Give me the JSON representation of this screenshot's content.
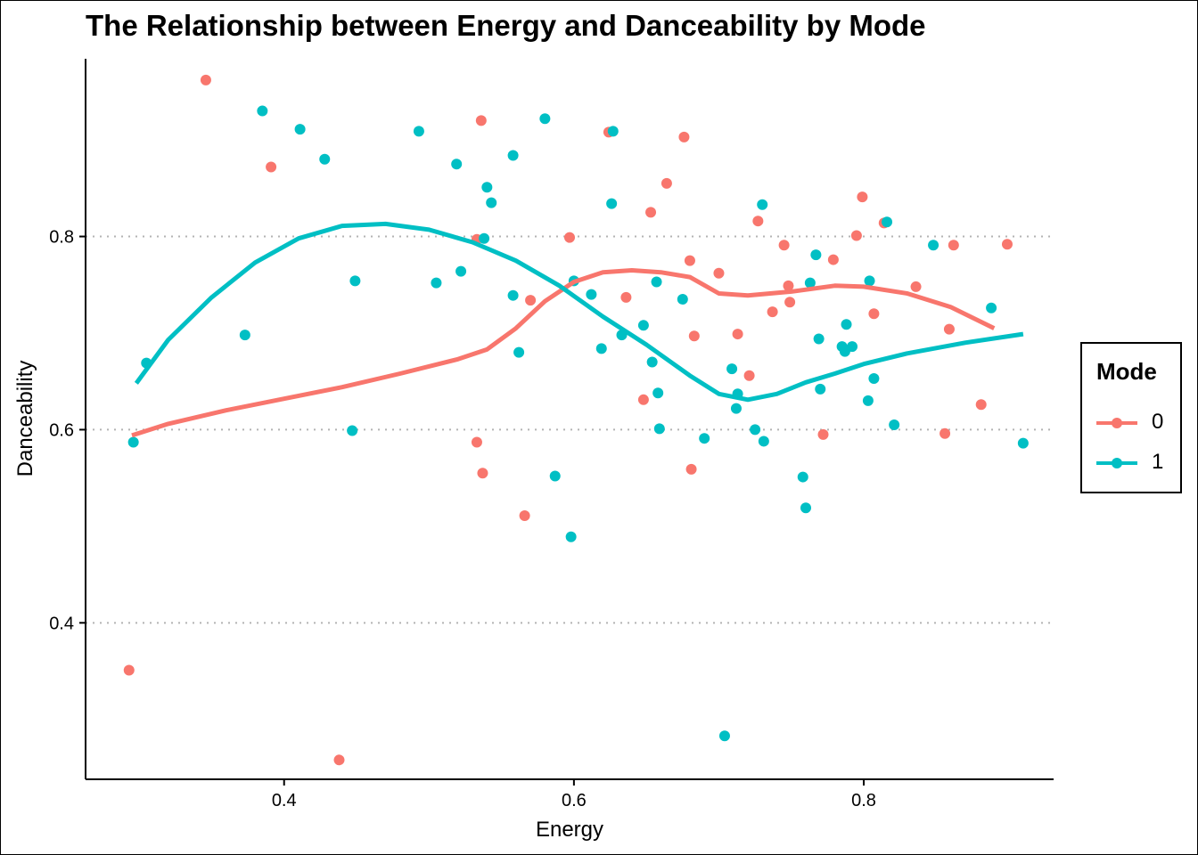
{
  "chart_data": {
    "type": "scatter",
    "title": "The Relationship between Energy and Danceability by Mode",
    "xlabel": "Energy",
    "ylabel": "Danceability",
    "xlim": [
      0.263,
      0.931
    ],
    "ylim": [
      0.238,
      0.984
    ],
    "xticks": [
      0.4,
      0.6,
      0.8
    ],
    "xtick_labels": [
      "0.4",
      "0.6",
      "0.8"
    ],
    "yticks": [
      0.4,
      0.6,
      0.8
    ],
    "ytick_labels": [
      "0.4",
      "0.6",
      "0.8"
    ],
    "grid": "horizontal dotted at major y ticks",
    "legend": {
      "title": "Mode",
      "position": "right"
    },
    "series": [
      {
        "name": "0",
        "color": "#F8766D",
        "points": [
          [
            0.346,
            0.962
          ],
          [
            0.391,
            0.872
          ],
          [
            0.536,
            0.92
          ],
          [
            0.533,
            0.797
          ],
          [
            0.624,
            0.908
          ],
          [
            0.676,
            0.903
          ],
          [
            0.664,
            0.855
          ],
          [
            0.653,
            0.825
          ],
          [
            0.597,
            0.799
          ],
          [
            0.727,
            0.816
          ],
          [
            0.799,
            0.841
          ],
          [
            0.814,
            0.814
          ],
          [
            0.795,
            0.801
          ],
          [
            0.745,
            0.791
          ],
          [
            0.862,
            0.791
          ],
          [
            0.899,
            0.792
          ],
          [
            0.68,
            0.775
          ],
          [
            0.779,
            0.776
          ],
          [
            0.7,
            0.762
          ],
          [
            0.636,
            0.737
          ],
          [
            0.57,
            0.734
          ],
          [
            0.748,
            0.749
          ],
          [
            0.749,
            0.732
          ],
          [
            0.836,
            0.748
          ],
          [
            0.737,
            0.722
          ],
          [
            0.807,
            0.72
          ],
          [
            0.713,
            0.699
          ],
          [
            0.683,
            0.697
          ],
          [
            0.859,
            0.704
          ],
          [
            0.721,
            0.656
          ],
          [
            0.648,
            0.631
          ],
          [
            0.772,
            0.595
          ],
          [
            0.533,
            0.587
          ],
          [
            0.856,
            0.596
          ],
          [
            0.881,
            0.626
          ],
          [
            0.537,
            0.555
          ],
          [
            0.681,
            0.559
          ],
          [
            0.566,
            0.511
          ],
          [
            0.293,
            0.351
          ],
          [
            0.438,
            0.258
          ]
        ],
        "smooth": [
          [
            0.295,
            0.594
          ],
          [
            0.32,
            0.606
          ],
          [
            0.36,
            0.62
          ],
          [
            0.4,
            0.632
          ],
          [
            0.44,
            0.644
          ],
          [
            0.48,
            0.658
          ],
          [
            0.52,
            0.673
          ],
          [
            0.54,
            0.683
          ],
          [
            0.56,
            0.705
          ],
          [
            0.58,
            0.733
          ],
          [
            0.6,
            0.753
          ],
          [
            0.62,
            0.763
          ],
          [
            0.64,
            0.765
          ],
          [
            0.66,
            0.763
          ],
          [
            0.68,
            0.758
          ],
          [
            0.7,
            0.741
          ],
          [
            0.72,
            0.739
          ],
          [
            0.75,
            0.743
          ],
          [
            0.78,
            0.749
          ],
          [
            0.8,
            0.748
          ],
          [
            0.83,
            0.741
          ],
          [
            0.86,
            0.727
          ],
          [
            0.89,
            0.705
          ]
        ]
      },
      {
        "name": "1",
        "color": "#00BFC4",
        "points": [
          [
            0.296,
            0.587
          ],
          [
            0.305,
            0.669
          ],
          [
            0.385,
            0.93
          ],
          [
            0.411,
            0.911
          ],
          [
            0.428,
            0.88
          ],
          [
            0.373,
            0.698
          ],
          [
            0.449,
            0.754
          ],
          [
            0.447,
            0.599
          ],
          [
            0.493,
            0.909
          ],
          [
            0.519,
            0.875
          ],
          [
            0.54,
            0.851
          ],
          [
            0.543,
            0.835
          ],
          [
            0.538,
            0.798
          ],
          [
            0.505,
            0.752
          ],
          [
            0.522,
            0.764
          ],
          [
            0.558,
            0.884
          ],
          [
            0.58,
            0.922
          ],
          [
            0.627,
            0.909
          ],
          [
            0.626,
            0.834
          ],
          [
            0.73,
            0.833
          ],
          [
            0.558,
            0.739
          ],
          [
            0.6,
            0.754
          ],
          [
            0.612,
            0.74
          ],
          [
            0.657,
            0.753
          ],
          [
            0.675,
            0.735
          ],
          [
            0.562,
            0.68
          ],
          [
            0.619,
            0.684
          ],
          [
            0.633,
            0.698
          ],
          [
            0.648,
            0.708
          ],
          [
            0.654,
            0.67
          ],
          [
            0.658,
            0.638
          ],
          [
            0.709,
            0.663
          ],
          [
            0.713,
            0.637
          ],
          [
            0.712,
            0.622
          ],
          [
            0.659,
            0.601
          ],
          [
            0.69,
            0.591
          ],
          [
            0.725,
            0.6
          ],
          [
            0.731,
            0.588
          ],
          [
            0.587,
            0.552
          ],
          [
            0.598,
            0.489
          ],
          [
            0.758,
            0.551
          ],
          [
            0.76,
            0.519
          ],
          [
            0.704,
            0.283
          ],
          [
            0.767,
            0.781
          ],
          [
            0.763,
            0.752
          ],
          [
            0.769,
            0.694
          ],
          [
            0.77,
            0.642
          ],
          [
            0.785,
            0.686
          ],
          [
            0.788,
            0.709
          ],
          [
            0.792,
            0.686
          ],
          [
            0.787,
            0.681
          ],
          [
            0.804,
            0.754
          ],
          [
            0.807,
            0.653
          ],
          [
            0.803,
            0.63
          ],
          [
            0.821,
            0.605
          ],
          [
            0.816,
            0.815
          ],
          [
            0.848,
            0.791
          ],
          [
            0.888,
            0.726
          ],
          [
            0.91,
            0.586
          ]
        ],
        "smooth": [
          [
            0.298,
            0.648
          ],
          [
            0.32,
            0.693
          ],
          [
            0.35,
            0.737
          ],
          [
            0.38,
            0.773
          ],
          [
            0.41,
            0.798
          ],
          [
            0.44,
            0.811
          ],
          [
            0.47,
            0.813
          ],
          [
            0.5,
            0.807
          ],
          [
            0.53,
            0.794
          ],
          [
            0.56,
            0.775
          ],
          [
            0.59,
            0.749
          ],
          [
            0.62,
            0.717
          ],
          [
            0.65,
            0.688
          ],
          [
            0.68,
            0.656
          ],
          [
            0.7,
            0.637
          ],
          [
            0.72,
            0.631
          ],
          [
            0.74,
            0.637
          ],
          [
            0.76,
            0.649
          ],
          [
            0.78,
            0.658
          ],
          [
            0.8,
            0.668
          ],
          [
            0.83,
            0.679
          ],
          [
            0.87,
            0.69
          ],
          [
            0.91,
            0.699
          ]
        ]
      }
    ]
  }
}
